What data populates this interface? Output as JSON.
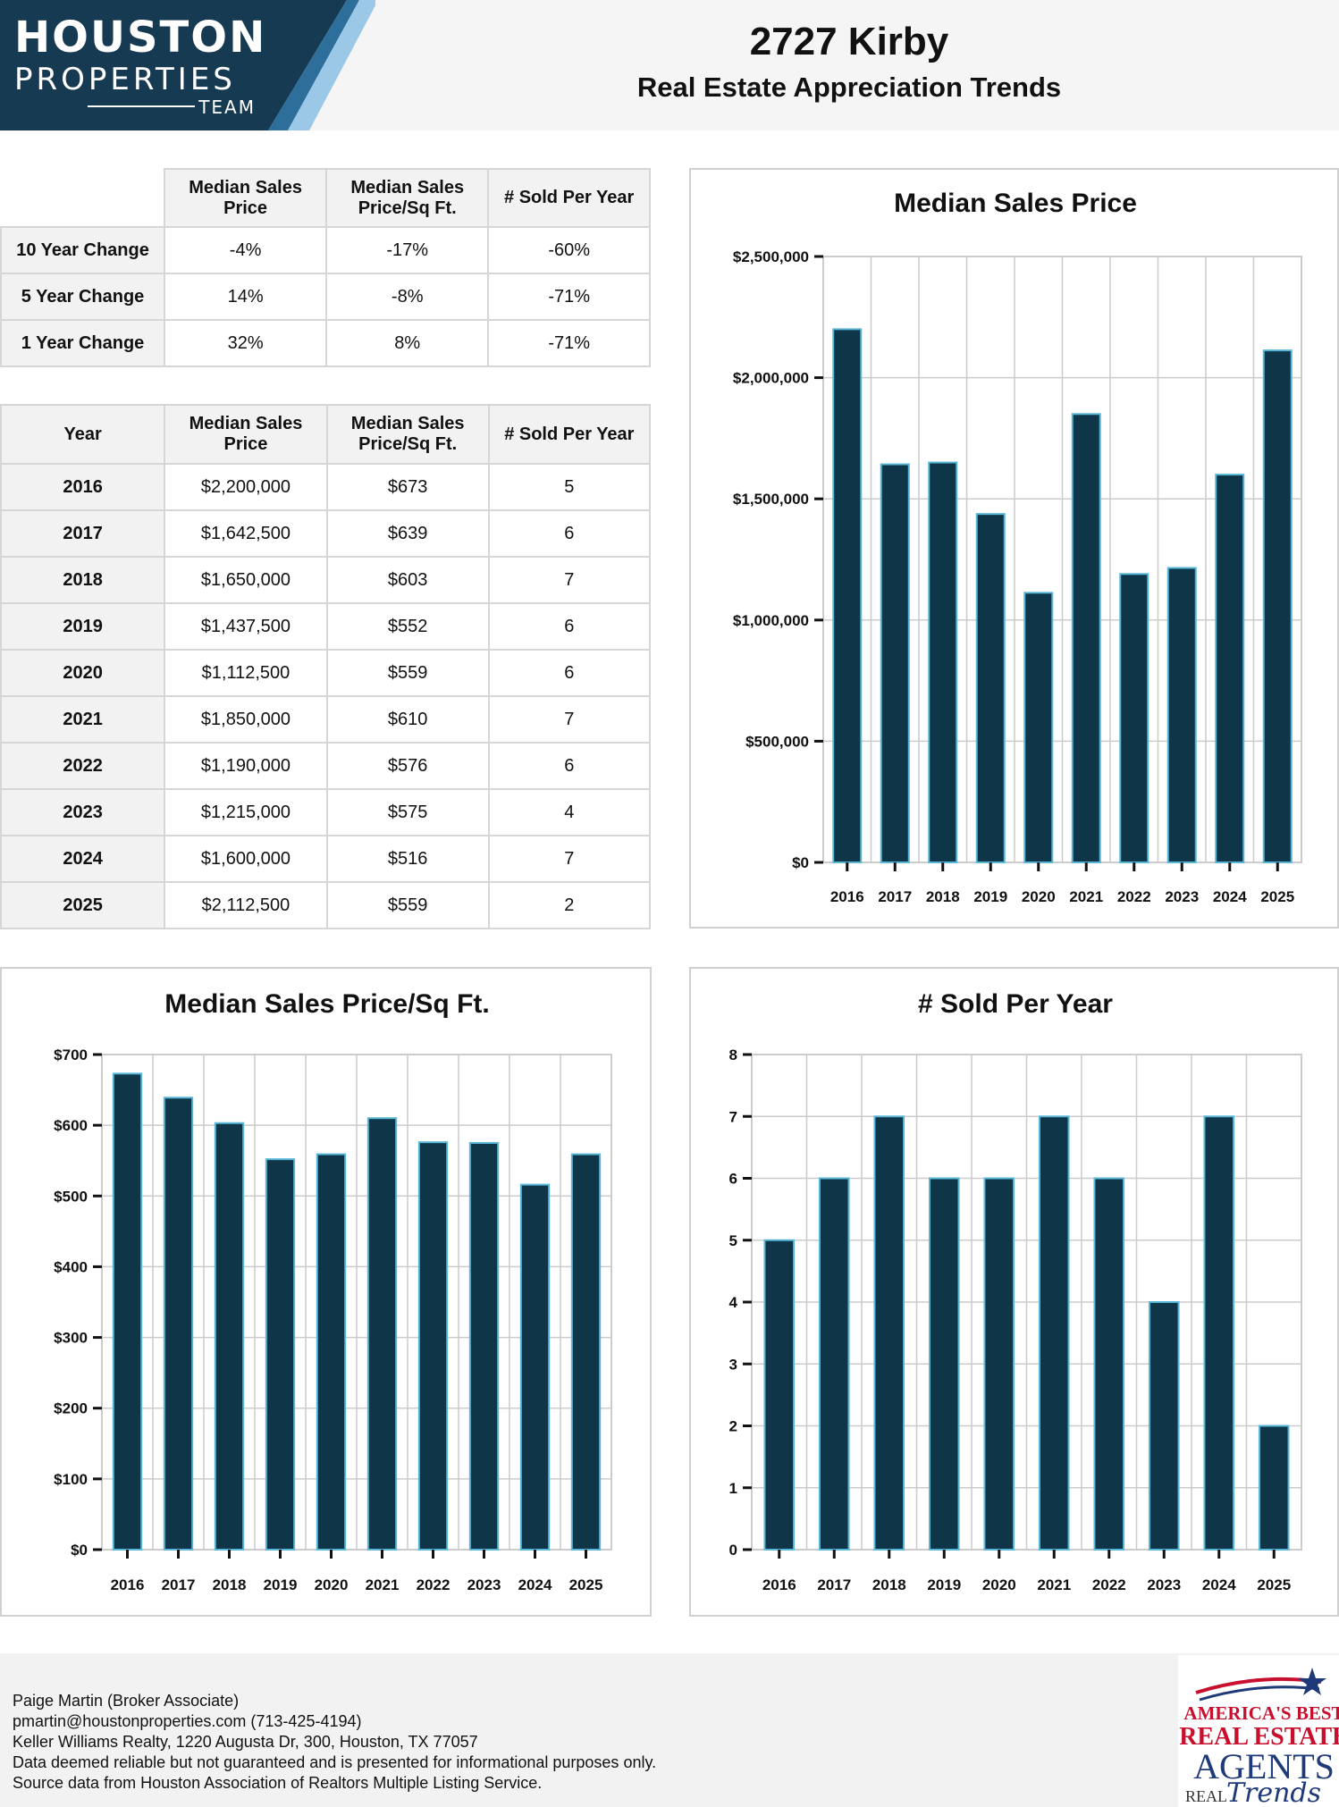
{
  "brand": {
    "line1": "HOUSTON",
    "line2": "PROPERTIES",
    "line3": "TEAM",
    "colors": {
      "navy": "#163a52",
      "light_blue": "#9cc8e8",
      "bar": "#0f3549",
      "bar_edge": "#58b6d6"
    }
  },
  "header": {
    "title": "2727 Kirby",
    "subtitle": "Real Estate Appreciation Trends"
  },
  "change_table": {
    "columns": [
      "Median Sales Price",
      "Median Sales Price/Sq Ft.",
      "# Sold Per Year"
    ],
    "rows": [
      {
        "label": "10 Year Change",
        "values": [
          "-4%",
          "-17%",
          "-60%"
        ]
      },
      {
        "label": "5 Year Change",
        "values": [
          "14%",
          "-8%",
          "-71%"
        ]
      },
      {
        "label": "1 Year Change",
        "values": [
          "32%",
          "8%",
          "-71%"
        ]
      }
    ]
  },
  "year_table": {
    "columns": [
      "Year",
      "Median Sales Price",
      "Median Sales Price/Sq Ft.",
      "# Sold Per Year"
    ],
    "rows": [
      [
        "2016",
        "$2,200,000",
        "$673",
        "5"
      ],
      [
        "2017",
        "$1,642,500",
        "$639",
        "6"
      ],
      [
        "2018",
        "$1,650,000",
        "$603",
        "7"
      ],
      [
        "2019",
        "$1,437,500",
        "$552",
        "6"
      ],
      [
        "2020",
        "$1,112,500",
        "$559",
        "6"
      ],
      [
        "2021",
        "$1,850,000",
        "$610",
        "7"
      ],
      [
        "2022",
        "$1,190,000",
        "$576",
        "6"
      ],
      [
        "2023",
        "$1,215,000",
        "$575",
        "4"
      ],
      [
        "2024",
        "$1,600,000",
        "$516",
        "7"
      ],
      [
        "2025",
        "$2,112,500",
        "$559",
        "2"
      ]
    ]
  },
  "chart_data": [
    {
      "type": "bar",
      "title": "Median Sales Price",
      "categories": [
        "2016",
        "2017",
        "2018",
        "2019",
        "2020",
        "2021",
        "2022",
        "2023",
        "2024",
        "2025"
      ],
      "values": [
        2200000,
        1642500,
        1650000,
        1437500,
        1112500,
        1850000,
        1190000,
        1215000,
        1600000,
        2112500
      ],
      "ylim": [
        0,
        2500000
      ],
      "yticks": [
        0,
        500000,
        1000000,
        1500000,
        2000000,
        2500000
      ],
      "ytick_labels": [
        "$0",
        "$500,000",
        "$1,000,000",
        "$1,500,000",
        "$2,000,000",
        "$2,500,000"
      ],
      "grid": true
    },
    {
      "type": "bar",
      "title": "Median Sales Price/Sq Ft.",
      "categories": [
        "2016",
        "2017",
        "2018",
        "2019",
        "2020",
        "2021",
        "2022",
        "2023",
        "2024",
        "2025"
      ],
      "values": [
        673,
        639,
        603,
        552,
        559,
        610,
        576,
        575,
        516,
        559
      ],
      "ylim": [
        0,
        700
      ],
      "yticks": [
        0,
        100,
        200,
        300,
        400,
        500,
        600,
        700
      ],
      "ytick_labels": [
        "$0",
        "$100",
        "$200",
        "$300",
        "$400",
        "$500",
        "$600",
        "$700"
      ],
      "grid": true
    },
    {
      "type": "bar",
      "title": "# Sold Per Year",
      "categories": [
        "2016",
        "2017",
        "2018",
        "2019",
        "2020",
        "2021",
        "2022",
        "2023",
        "2024",
        "2025"
      ],
      "values": [
        5,
        6,
        7,
        6,
        6,
        7,
        6,
        4,
        7,
        2
      ],
      "ylim": [
        0,
        8
      ],
      "yticks": [
        0,
        1,
        2,
        3,
        4,
        5,
        6,
        7,
        8
      ],
      "ytick_labels": [
        "0",
        "1",
        "2",
        "3",
        "4",
        "5",
        "6",
        "7",
        "8"
      ],
      "grid": true
    }
  ],
  "footer": {
    "lines": [
      "Paige Martin (Broker Associate)",
      "pmartin@houstonproperties.com (713-425-4194)",
      "Keller Williams Realty, 1220 Augusta Dr, 300, Houston, TX 77057",
      "Data deemed reliable but not guaranteed and is presented for informational purposes only.",
      "Source data from Houston Association of Realtors Multiple Listing Service."
    ]
  },
  "badge": {
    "line1": "AMERICA'S BEST",
    "line2": "REAL ESTATE",
    "line3": "AGENTS",
    "line4": "REAL",
    "line5": "Trends"
  }
}
